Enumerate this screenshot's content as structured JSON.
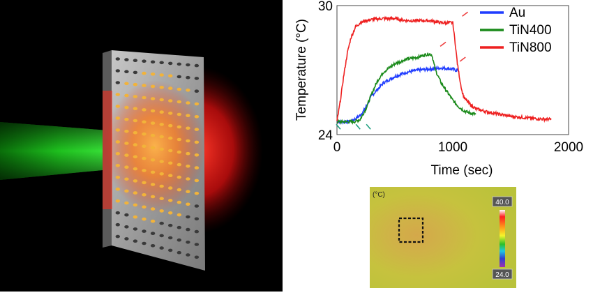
{
  "chart_data": {
    "type": "line",
    "xlabel": "Time (sec)",
    "ylabel": "Temperature (°C)",
    "xlim": [
      0,
      2000
    ],
    "ylim": [
      24,
      30
    ],
    "x_ticks": [
      "0",
      "1000",
      "2000"
    ],
    "y_ticks": [
      "24",
      "30"
    ],
    "legend_position": "top-right",
    "series": [
      {
        "name": "Au",
        "color": "#1f3cff",
        "x": [
          0,
          100,
          150,
          200,
          230,
          260,
          300,
          400,
          500,
          600,
          700,
          800,
          900,
          1000,
          1020,
          1050
        ],
        "y": [
          24.6,
          24.6,
          24.7,
          24.9,
          25.1,
          25.4,
          25.8,
          26.4,
          26.7,
          26.9,
          27.0,
          27.05,
          27.1,
          27.05,
          27.0,
          27.0
        ]
      },
      {
        "name": "TiN400",
        "color": "#1a8a1a",
        "x": [
          0,
          150,
          200,
          250,
          300,
          350,
          400,
          500,
          600,
          700,
          750,
          800,
          820,
          850,
          900,
          950,
          1000,
          1050,
          1100,
          1150,
          1200
        ],
        "y": [
          24.6,
          24.6,
          24.7,
          25.2,
          25.9,
          26.5,
          26.9,
          27.3,
          27.5,
          27.6,
          27.7,
          27.75,
          27.7,
          27.0,
          26.4,
          26.0,
          25.6,
          25.3,
          25.1,
          25.0,
          24.95
        ]
      },
      {
        "name": "TiN800",
        "color": "#ee2020",
        "x": [
          0,
          30,
          60,
          90,
          120,
          160,
          200,
          250,
          300,
          400,
          500,
          600,
          700,
          800,
          900,
          1000,
          1020,
          1040,
          1060,
          1080,
          1100,
          1150,
          1200,
          1300,
          1400,
          1500,
          1600,
          1700,
          1850
        ],
        "y": [
          24.6,
          25.6,
          26.8,
          27.8,
          28.5,
          29.0,
          29.2,
          29.3,
          29.35,
          29.4,
          29.4,
          29.3,
          29.3,
          29.3,
          29.2,
          29.2,
          28.3,
          27.3,
          26.6,
          26.0,
          25.7,
          25.4,
          25.2,
          25.05,
          24.95,
          24.85,
          24.8,
          24.75,
          24.7
        ]
      }
    ]
  },
  "thermal": {
    "unit": "(°C)",
    "max": "40.0",
    "min": "24.0"
  }
}
